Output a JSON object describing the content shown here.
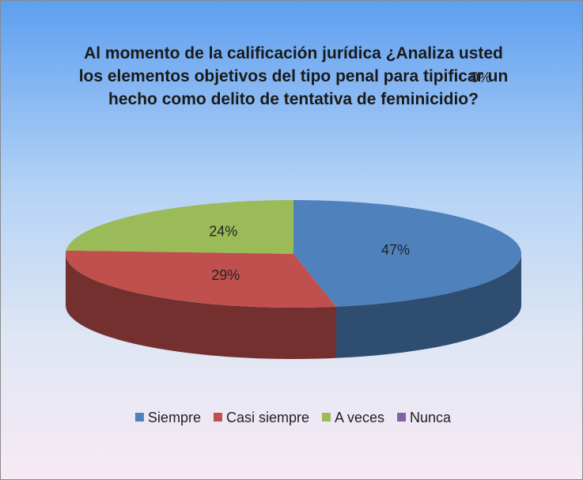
{
  "chart_data": {
    "type": "pie",
    "title": "Al momento de la calificación jurídica ¿Analiza usted los elementos objetivos del tipo penal para tipificar un hecho como delito de tentativa de feminicidio?",
    "categories": [
      "Siempre",
      "Casi siempre",
      "A veces",
      "Nunca"
    ],
    "values": [
      47,
      29,
      24,
      0
    ],
    "value_labels": [
      "47%",
      "29%",
      "24%",
      "0%"
    ],
    "colors": [
      "#4f81bd",
      "#c0504d",
      "#9bbb59",
      "#8064a2"
    ],
    "legend": "bottom"
  }
}
